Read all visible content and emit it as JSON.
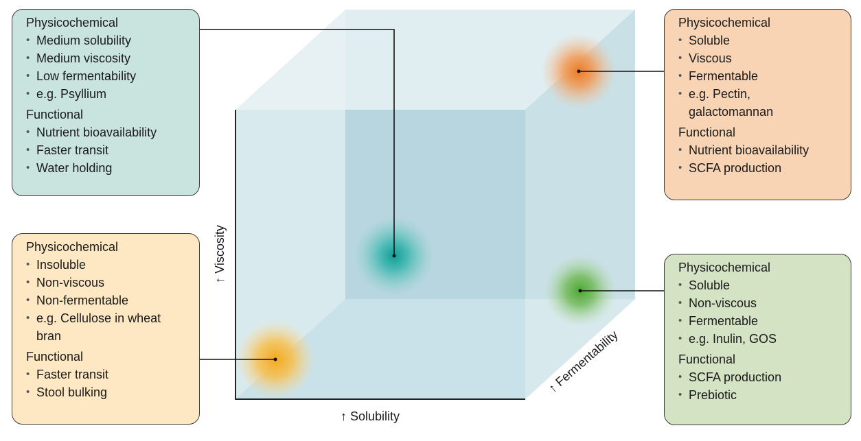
{
  "axes": {
    "solubility": "↑ Solubility",
    "viscosity": "↑ Viscosity",
    "fermentability": "↑ Fermentability"
  },
  "colors": {
    "teal_box": "#c9e4df",
    "orange_box": "#f8d4b4",
    "yellow_box": "#fde8c3",
    "green_box": "#d3e3c4",
    "cube_face": "#b9d9e1",
    "teal_blob": "#1aa6a0",
    "orange_blob": "#ef8a3c",
    "yellow_blob": "#f6b83a",
    "green_blob": "#62b04a"
  },
  "boxes": {
    "medium": {
      "physicochemical_label": "Physicochemical",
      "physicochemical": [
        "Medium solubility",
        "Medium viscosity",
        "Low fermentability",
        "e.g. Psyllium"
      ],
      "functional_label": "Functional",
      "functional": [
        "Nutrient bioavailability",
        "Faster transit",
        "Water holding"
      ]
    },
    "soluble_viscous": {
      "physicochemical_label": "Physicochemical",
      "physicochemical": [
        "Soluble",
        "Viscous",
        "Fermentable",
        "e.g. Pectin, galactomannan"
      ],
      "functional_label": "Functional",
      "functional": [
        "Nutrient bioavailability",
        "SCFA production"
      ]
    },
    "insoluble": {
      "physicochemical_label": "Physicochemical",
      "physicochemical": [
        "Insoluble",
        "Non-viscous",
        "Non-fermentable",
        "e.g. Cellulose in wheat bran"
      ],
      "functional_label": "Functional",
      "functional": [
        "Faster transit",
        "Stool bulking"
      ]
    },
    "soluble_nonviscous": {
      "physicochemical_label": "Physicochemical",
      "physicochemical": [
        "Soluble",
        "Non-viscous",
        "Fermentable",
        "e.g. Inulin, GOS"
      ],
      "functional_label": "Functional",
      "functional": [
        "SCFA production",
        "Prebiotic"
      ]
    }
  }
}
